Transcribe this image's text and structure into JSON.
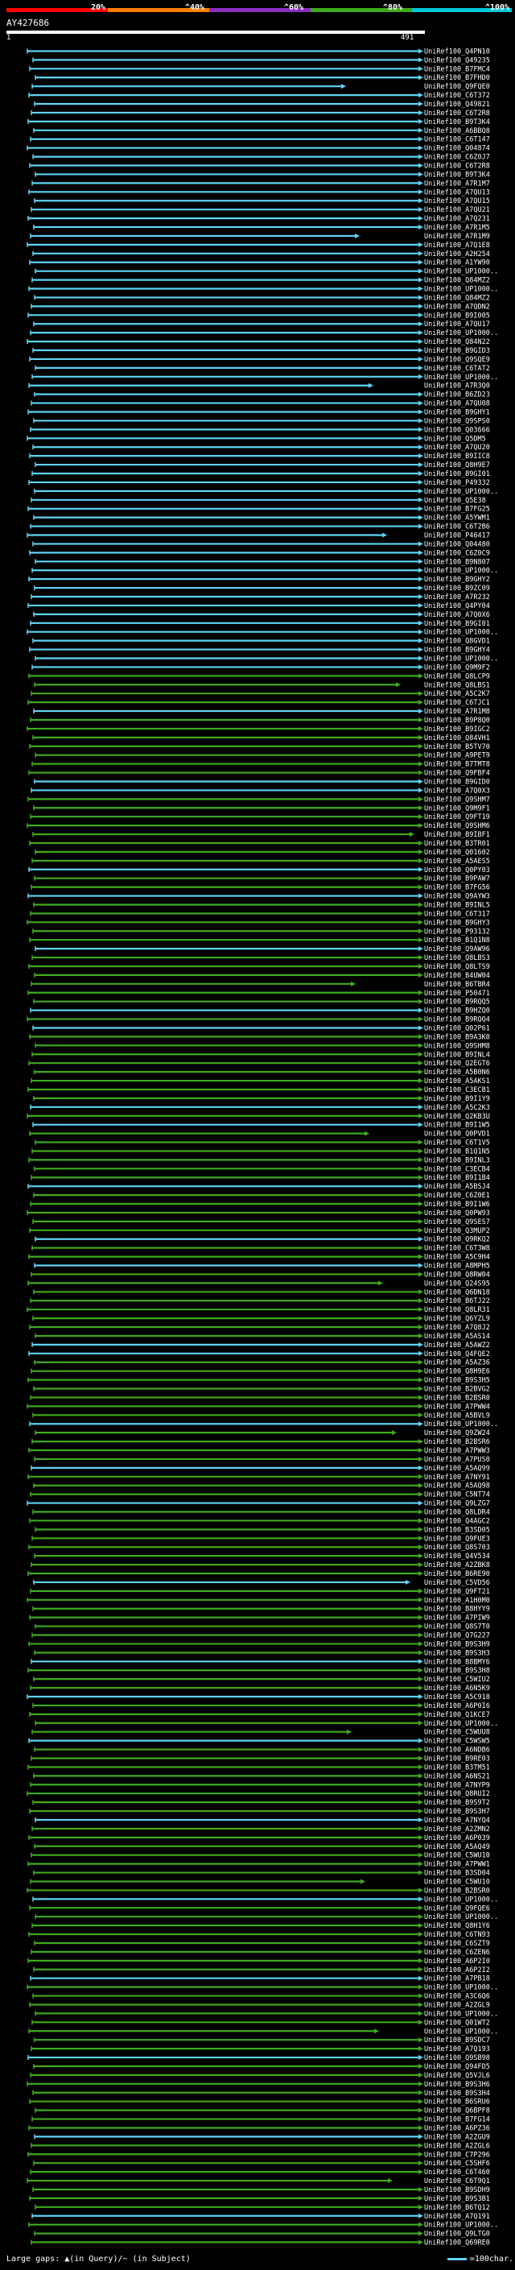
{
  "legend": {
    "labels": [
      "20%",
      "^40%",
      "^60%",
      "^80%",
      "^100%"
    ],
    "colors": [
      "#ff0000",
      "#ff7f00",
      "#8b2fc0",
      "#3faa1f",
      "#00c8d8"
    ]
  },
  "query": {
    "id": "AY427686",
    "start": "1",
    "end": "491"
  },
  "footer": {
    "gaps_text": "Large gaps: ▲(in Query)/~ (in Subject)",
    "scale_text": "=100char."
  },
  "chart_data": {
    "type": "alignment-map",
    "title": "AY427686",
    "query_length": 491,
    "hits": [
      "UniRef100_Q4PN10",
      "UniRef100_Q49235",
      "UniRef100_B7FMC4",
      "UniRef100_B7FHD0",
      "UniRef100_Q9FQE0",
      "UniRef100_C6T372",
      "UniRef100_Q49821",
      "UniRef100_C6T2R8",
      "UniRef100_B9T3K4",
      "UniRef100_A6BBQ8",
      "UniRef100_C6T147",
      "UniRef100_Q04874",
      "UniRef100_C6Z0J7",
      "UniRef100_C6T2R8",
      "UniRef100_B9T3K4",
      "UniRef100_A7R1M7",
      "UniRef100_A7QU13",
      "UniRef100_A7QU15",
      "UniRef100_A7QU21",
      "UniRef100_A7Q231",
      "UniRef100_A7R1M5",
      "UniRef100_A7R1M9",
      "UniRef100_A7Q1E8",
      "UniRef100_A2H254",
      "UniRef100_A1YW90",
      "UniRef100_UP1000..",
      "UniRef100_Q84MZ2",
      "UniRef100_UP1000..",
      "UniRef100_Q84MZ2",
      "UniRef100_A7QDN2",
      "UniRef100_B9I005",
      "UniRef100_A7QU17",
      "UniRef100_UP1000..",
      "UniRef100_Q84N22",
      "UniRef100_B9GID3",
      "UniRef100_Q9SQE9",
      "UniRef100_C6TAT2",
      "UniRef100_UP1000..",
      "UniRef100_A7R3Q0",
      "UniRef100_B6ZD23",
      "UniRef100_A7QU08",
      "UniRef100_B9GHY1",
      "UniRef100_Q9SPS0",
      "UniRef100_Q03666",
      "UniRef100_Q5DM5",
      "UniRef100_A7QU20",
      "UniRef100_B9IIC8",
      "UniRef100_Q8H9E7",
      "UniRef100_B9GI01",
      "UniRef100_P49332",
      "UniRef100_UP1000..",
      "UniRef100_Q5E38",
      "UniRef100_B7FG25",
      "UniRef100_A5YWM1",
      "UniRef100_C6T2B6",
      "UniRef100_P46417",
      "UniRef100_Q04480",
      "UniRef100_C6Z0C9",
      "UniRef100_B9N807",
      "UniRef100_UP1000..",
      "UniRef100_B9GHY2",
      "UniRef100_B9ZC09",
      "UniRef100_A7R232",
      "UniRef100_Q4PY04",
      "UniRef100_A7Q0X6",
      "UniRef100_B9GI01",
      "UniRef100_UP1000..",
      "UniRef100_Q8GVD1",
      "UniRef100_B9GHY4",
      "UniRef100_UP1000..",
      "UniRef100_Q9M9F2",
      "UniRef100_Q8LCP9",
      "UniRef100_Q8LBS1",
      "UniRef100_A5C2K7",
      "UniRef100_C6TJC1",
      "UniRef100_A7R1M8",
      "UniRef100_B9P8Q0",
      "UniRef100_B9IGC2",
      "UniRef100_Q84VH1",
      "UniRef100_B5TV70",
      "UniRef100_A9PET9",
      "UniRef100_B7TMT8",
      "UniRef100_Q9FBF4",
      "UniRef100_B9GID0",
      "UniRef100_A7Q0X3",
      "UniRef100_Q9SHM7",
      "UniRef100_Q9M9F1",
      "UniRef100_Q9FT19",
      "UniRef100_Q9SHM6",
      "UniRef100_B9IBF1",
      "UniRef100_B3TR01",
      "UniRef100_Q01602",
      "UniRef100_A5AES5",
      "UniRef100_Q0PY03",
      "UniRef100_B9PAW7",
      "UniRef100_B7FG56",
      "UniRef100_Q9AYW3",
      "UniRef100_B9INL5",
      "UniRef100_C6T317",
      "UniRef100_B9GHY3",
      "UniRef100_P93132",
      "UniRef100_B1Q1N8",
      "UniRef100_Q9AW96",
      "UniRef100_Q8LBS3",
      "UniRef100_Q8LTS9",
      "UniRef100_B4UW04",
      "UniRef100_B6TBR4",
      "UniRef100_P50471",
      "UniRef100_B9RQQ5",
      "UniRef100_B9HZQ0",
      "UniRef100_B9RQQ4",
      "UniRef100_Q02P61",
      "UniRef100_B9A3K0",
      "UniRef100_Q9SHM8",
      "UniRef100_B9INL4",
      "UniRef100_Q2EGT6",
      "UniRef100_A5B0N6",
      "UniRef100_A5AKS1",
      "UniRef100_C3ECB1",
      "UniRef100_B9I1Y9",
      "UniRef100_A5C2K3",
      "UniRef100_Q2KB3U",
      "UniRef100_B9I1W5",
      "UniRef100_Q0PVD1",
      "UniRef100_C6T1V5",
      "UniRef100_B1Q1N5",
      "UniRef100_B9INL3",
      "UniRef100_C3ECB4",
      "UniRef100_B9I1B4",
      "UniRef100_A5BSJ4",
      "UniRef100_C6Z0E1",
      "UniRef100_B9I1W6",
      "UniRef100_Q0PW93",
      "UniRef100_Q9SES7",
      "UniRef100_Q3MUP2",
      "UniRef100_Q9RKQ2",
      "UniRef100_C6T3W8",
      "UniRef100_A5C9H4",
      "UniRef100_A8MPH5",
      "UniRef100_Q8RW04",
      "UniRef100_Q24S95",
      "UniRef100_Q6DN18",
      "UniRef100_B6TJ22",
      "UniRef100_Q8LR31",
      "UniRef100_Q6YZL9",
      "UniRef100_A7Q8J2",
      "UniRef100_A5AS14",
      "UniRef100_A5AWZ2",
      "UniRef100_Q4FQE2",
      "UniRef100_A5AZ36",
      "UniRef100_Q8H9E6",
      "UniRef100_B9S3H5",
      "UniRef100_B2BVG2",
      "UniRef100_B2BSR0",
      "UniRef100_A7PWW4",
      "UniRef100_A5BVL9",
      "UniRef100_UP1000..",
      "UniRef100_Q9ZW24",
      "UniRef100_B2BSR6",
      "UniRef100_A7PWW3",
      "UniRef100_A7PUS0",
      "UniRef100_A5AQ99",
      "UniRef100_A7NY91",
      "UniRef100_A5AQ98",
      "UniRef100_C5NT74",
      "UniRef100_Q9LZG7",
      "UniRef100_Q8LDR4",
      "UniRef100_Q4AGC2",
      "UniRef100_B3SD05",
      "UniRef100_Q9FUE3",
      "UniRef100_Q8S703",
      "UniRef100_Q4V534",
      "UniRef100_A2ZBK8",
      "UniRef100_B6RE90",
      "UniRef100_C5VD56",
      "UniRef100_Q9FT21",
      "UniRef100_A1H0M0",
      "UniRef100_B8HYY9",
      "UniRef100_A7PIW9",
      "UniRef100_Q8S7T0",
      "UniRef100_Q7G227",
      "UniRef100_B9S3H9",
      "UniRef100_B9S3H3",
      "UniRef100_B8BMY6",
      "UniRef100_B9S3H8",
      "UniRef100_C5WIU2",
      "UniRef100_A6N5K9",
      "UniRef100_A5C918",
      "UniRef100_A6P0I6",
      "UniRef100_Q1KCE7",
      "UniRef100_UP1000..",
      "UniRef100_C5WUU8",
      "UniRef100_C5WSW5",
      "UniRef100_A6NDB6",
      "UniRef100_B9RE03",
      "UniRef100_B3TM51",
      "UniRef100_A6NS21",
      "UniRef100_A7NYP9",
      "UniRef100_Q8RUI2",
      "UniRef100_B9S9T2",
      "UniRef100_B9S3H7",
      "UniRef100_A7NYQ4",
      "UniRef100_A2ZMN2",
      "UniRef100_A6P039",
      "UniRef100_A5AQ49",
      "UniRef100_C5WU10",
      "UniRef100_A7PWW1",
      "UniRef100_B3SD04",
      "UniRef100_C5WU10",
      "UniRef100_B2BSR0",
      "UniRef100_UP1000..",
      "UniRef100_Q9FQE6",
      "UniRef100_UP1000..",
      "UniRef100_Q8H1Y6",
      "UniRef100_C6TN93",
      "UniRef100_C6SZT9",
      "UniRef100_C6ZEN6",
      "UniRef100_A6P2I0",
      "UniRef100_A6P2I2",
      "UniRef100_A7PB18",
      "UniRef100_UP1000..",
      "UniRef100_A3C6Q6",
      "UniRef100_A2ZGL9",
      "UniRef100_UP1000..",
      "UniRef100_Q01WT2",
      "UniRef100_UP1000..",
      "UniRef100_B9SDC7",
      "UniRef100_A7Q193",
      "UniRef100_Q9SB98",
      "UniRef100_Q94FD5",
      "UniRef100_Q5VJL6",
      "UniRef100_B9S3H6",
      "UniRef100_B9S3H4",
      "UniRef100_B6SRU6",
      "UniRef100_Q6BPF8",
      "UniRef100_B7FG14",
      "UniRef100_A6PZ36",
      "UniRef100_A2ZGU9",
      "UniRef100_A2ZGL6",
      "UniRef100_C7P296",
      "UniRef100_C5SHF6",
      "UniRef100_C6T460",
      "UniRef100_C6T9Q1",
      "UniRef100_B9SDH9",
      "UniRef100_B9S3B1",
      "UniRef100_B6TQ12",
      "UniRef100_A7Q191",
      "UniRef100_UP1000..",
      "UniRef100_Q9LTG0",
      "UniRef100_Q69RE0"
    ],
    "hit_colors": [
      "cyan",
      "green"
    ],
    "note": "Each row is one subject sequence aligned to the query (1-491); bar color = identity bin per legend."
  }
}
